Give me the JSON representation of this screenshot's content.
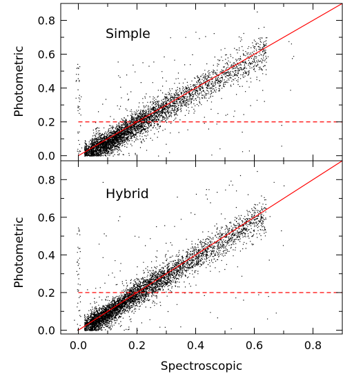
{
  "chart_data": [
    {
      "type": "scatter",
      "panel_label": "Simple",
      "ylabel": "Photometric",
      "xlim": [
        -0.06,
        0.9
      ],
      "ylim": [
        -0.03,
        0.9
      ],
      "y_ticks": [
        "0.0",
        "0.2",
        "0.4",
        "0.6",
        "0.8"
      ],
      "one_to_one_line": {
        "x": [
          0.0,
          0.9
        ],
        "y": [
          0.0,
          0.9
        ],
        "color": "#ff0000",
        "style": "solid"
      },
      "threshold_line": {
        "y": 0.2,
        "x_start": 0.0,
        "color": "#ff0000",
        "style": "dashed"
      },
      "scatter_cloud": {
        "color": "#000000",
        "n_points": 4500,
        "spine": [
          [
            0.02,
            0.02
          ],
          [
            0.1,
            0.08
          ],
          [
            0.2,
            0.19
          ],
          [
            0.3,
            0.29
          ],
          [
            0.4,
            0.38
          ],
          [
            0.5,
            0.48
          ],
          [
            0.62,
            0.6
          ]
        ],
        "spread": 0.035
      }
    },
    {
      "type": "scatter",
      "panel_label": "Hybrid",
      "ylabel": "Photometric",
      "xlabel": "Spectroscopic",
      "xlim": [
        -0.06,
        0.9
      ],
      "ylim": [
        -0.02,
        0.9
      ],
      "x_ticks": [
        "0.0",
        "0.2",
        "0.4",
        "0.6",
        "0.8"
      ],
      "y_ticks": [
        "0.0",
        "0.2",
        "0.4",
        "0.6",
        "0.8"
      ],
      "one_to_one_line": {
        "x": [
          0.0,
          0.9
        ],
        "y": [
          0.0,
          0.9
        ],
        "color": "#ff0000",
        "style": "solid"
      },
      "threshold_line": {
        "y": 0.2,
        "x_start": 0.0,
        "color": "#ff0000",
        "style": "dashed"
      },
      "scatter_cloud": {
        "color": "#000000",
        "n_points": 5000,
        "spine": [
          [
            0.02,
            0.02
          ],
          [
            0.1,
            0.09
          ],
          [
            0.2,
            0.2
          ],
          [
            0.3,
            0.29
          ],
          [
            0.4,
            0.39
          ],
          [
            0.5,
            0.48
          ],
          [
            0.62,
            0.6
          ]
        ],
        "spread": 0.03
      }
    }
  ]
}
